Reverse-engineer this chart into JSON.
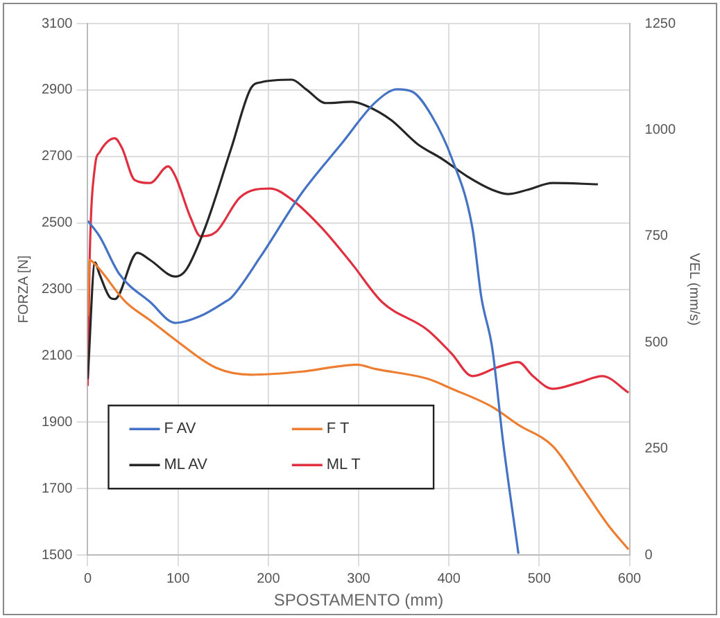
{
  "chart_data": {
    "type": "line",
    "xlabel": "SPOSTAMENTO (mm)",
    "ylabel": "FORZA [N]",
    "y2label": "VEL (mm/s)",
    "xlim": [
      0,
      600
    ],
    "xticks": [
      0,
      100,
      200,
      300,
      400,
      500,
      600
    ],
    "ylim": [
      1500,
      3100
    ],
    "yticks": [
      1500,
      1700,
      1900,
      2100,
      2300,
      2500,
      2700,
      2900,
      3100
    ],
    "y2lim": [
      0,
      1250
    ],
    "y2ticks": [
      0,
      250,
      500,
      750,
      1000,
      1250
    ],
    "grid": true,
    "legend": "bottom left",
    "marker": "none",
    "line_style": "solid",
    "series": [
      {
        "name": "F AV",
        "color": "#4472c4",
        "x": [
          0,
          13,
          35,
          69,
          97,
          125,
          152,
          159,
          192,
          236,
          281,
          319,
          343,
          360,
          381,
          403,
          426,
          436,
          448,
          460,
          477
        ],
        "values": [
          2506,
          2460,
          2346,
          2262,
          2199,
          2220,
          2262,
          2275,
          2401,
          2586,
          2738,
          2864,
          2902,
          2894,
          2822,
          2696,
          2485,
          2275,
          2123,
          1841,
          1504
        ]
      },
      {
        "name": "F T",
        "color": "#ed7d31",
        "x": [
          0,
          2,
          8,
          42,
          69,
          97,
          142,
          181,
          236,
          298,
          319,
          376,
          403,
          448,
          477,
          515,
          548,
          577,
          599
        ],
        "values": [
          2220,
          2388,
          2376,
          2262,
          2207,
          2148,
          2064,
          2043,
          2052,
          2073,
          2060,
          2031,
          2001,
          1946,
          1892,
          1828,
          1702,
          1588,
          1517
        ]
      },
      {
        "name": "ML AV",
        "color": "#262626",
        "axis": "y2",
        "x": [
          0,
          8,
          13,
          25,
          30,
          55,
          69,
          97,
          109,
          130,
          159,
          181,
          192,
          226,
          242,
          264,
          293,
          309,
          336,
          365,
          393,
          420,
          448,
          465,
          487,
          515,
          565
        ],
        "values": [
          414,
          688,
          661,
          605,
          602,
          711,
          694,
          655,
          671,
          770,
          957,
          1099,
          1112,
          1118,
          1095,
          1063,
          1066,
          1056,
          1023,
          967,
          931,
          891,
          859,
          849,
          859,
          875,
          872
        ]
      },
      {
        "name": "ML T",
        "color": "#e03040",
        "axis": "y2",
        "x": [
          0,
          2,
          8,
          13,
          30,
          38,
          52,
          69,
          89,
          97,
          114,
          125,
          142,
          169,
          202,
          226,
          259,
          293,
          326,
          376,
          403,
          426,
          453,
          477,
          493,
          515,
          543,
          570,
          599
        ],
        "values": [
          398,
          684,
          914,
          947,
          980,
          957,
          882,
          875,
          914,
          891,
          793,
          750,
          760,
          842,
          862,
          836,
          770,
          684,
          595,
          530,
          474,
          421,
          441,
          454,
          421,
          391,
          405,
          421,
          382
        ]
      }
    ]
  }
}
